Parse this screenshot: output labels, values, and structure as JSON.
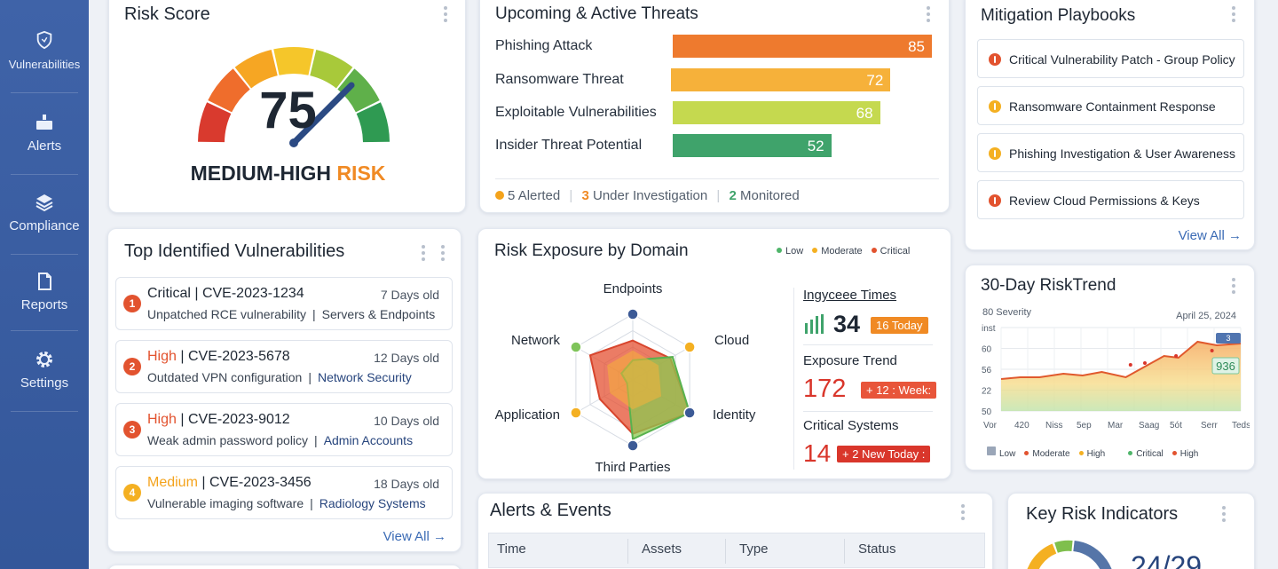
{
  "sidebar": {
    "items": [
      {
        "label": "Vulnerabilities",
        "icon": "shield-icon"
      },
      {
        "label": "Alerts",
        "icon": "alert-icon"
      },
      {
        "label": "Compliance",
        "icon": "layers-icon"
      },
      {
        "label": "Reports",
        "icon": "document-icon"
      },
      {
        "label": "Settings",
        "icon": "gear-icon"
      }
    ]
  },
  "risk_score": {
    "title": "Risk Score",
    "value": "75",
    "value_fraction": 0.75,
    "level_prefix": "MEDIUM-HIGH",
    "level_suffix": "RISK",
    "level_color": "#f08a24"
  },
  "threats": {
    "title": "Upcoming & Active Threats",
    "items": [
      {
        "label": "Phishing Attack",
        "value": "85",
        "color": "#ee7a2e"
      },
      {
        "label": "Ransomware Threat",
        "value": "72",
        "color": "#f6b13a"
      },
      {
        "label": "Exploitable Vulnerabilities",
        "value": "68",
        "color": "#c5d94f"
      },
      {
        "label": "Insider Threat Potential",
        "value": "52",
        "color": "#3fa36b"
      }
    ],
    "summary": {
      "alerted_count": "5",
      "alerted_label": "Alerted",
      "investigation_count": "3",
      "investigation_label": "Under Investigation",
      "monitored_count": "2",
      "monitored_label": "Monitored"
    }
  },
  "playbooks": {
    "title": "Mitigation Playbooks",
    "items": [
      {
        "label": "Critical Vulnerability Patch - Group Policy",
        "color": "#e2532f"
      },
      {
        "label": "Ransomware Containment Response",
        "color": "#f4b022"
      },
      {
        "label": "Phishing Investigation & User Awareness",
        "color": "#f4b022"
      },
      {
        "label": "Review Cloud Permissions & Keys",
        "color": "#e2532f"
      }
    ],
    "view_all": "View All"
  },
  "vulnerabilities": {
    "title": "Top Identified Vulnerabilities",
    "items": [
      {
        "num": "1",
        "severity": "Critical",
        "cve": "| CVE-2023-1234",
        "age_num": "7",
        "age_unit": "Days old",
        "desc": "Unpatched RCE vulnerability",
        "sep": "|",
        "area": "Servers & Endpoints",
        "sev_color": "#1e2733",
        "badge_color": "#e2532f",
        "area_color": "#3a4452"
      },
      {
        "num": "2",
        "severity": "High",
        "cve": "| CVE-2023-5678",
        "age_num": "12",
        "age_unit": "Days old",
        "desc": "Outdated VPN configuration",
        "sep": "|",
        "area": "Network Security",
        "sev_color": "#e2532f",
        "badge_color": "#e2532f",
        "area_color": "#27457d"
      },
      {
        "num": "3",
        "severity": "High",
        "cve": "| CVE-2023-9012",
        "age_num": "10",
        "age_unit": "Days old",
        "desc": "Weak admin password policy",
        "sep": "|",
        "area": "Admin Accounts",
        "sev_color": "#e2532f",
        "badge_color": "#e2532f",
        "area_color": "#27457d"
      },
      {
        "num": "4",
        "severity": "Medium",
        "cve": "| CVE-2023-3456",
        "age_num": "18",
        "age_unit": "Days old",
        "desc": "Vulnerable imaging software",
        "sep": "|",
        "area": "Radiology Systems",
        "sev_color": "#f4a31c",
        "badge_color": "#f4b022",
        "area_color": "#27457d"
      }
    ],
    "view_all": "View All"
  },
  "exposure": {
    "title": "Risk Exposure by Domain",
    "legend": [
      {
        "label": "Low",
        "color": "#4fb56a"
      },
      {
        "label": "Moderate",
        "color": "#f4b022"
      },
      {
        "label": "Critical",
        "color": "#e2532f"
      }
    ],
    "axes": [
      "Endpoints",
      "Cloud",
      "Identity",
      "Third Parties",
      "Application",
      "Network"
    ],
    "stats": {
      "times_label": "Ingyceee Times",
      "times_value": "34",
      "times_badge": "16 Today",
      "trend_label": "Exposure Trend",
      "trend_value": "172",
      "trend_badge": "+ 12 : Week:",
      "critical_label": "Critical Systems",
      "critical_value": "14",
      "critical_badge": "+ 2 New Today :"
    }
  },
  "trend": {
    "title": "30-Day RiskTrend",
    "ylabel": "80 Severity",
    "date": "April 25, 2024",
    "y_ticks": [
      "inst",
      "60",
      "56",
      "22",
      "50"
    ],
    "x_ticks": [
      "Vor",
      "420",
      "Niss",
      "5ep",
      "Mar",
      "Saag",
      "5ót",
      "Serr",
      "Teds"
    ],
    "tag_top": "3",
    "tag_value": "936",
    "legend": [
      {
        "label": "Low",
        "color": "#9aa6b8"
      },
      {
        "label": "Moderate",
        "color": "#e2532f"
      },
      {
        "label": "High",
        "color": "#f4b022"
      },
      {
        "label": "Critical",
        "color": "#4fb56a"
      },
      {
        "label": "High",
        "color": "#e2532f"
      }
    ]
  },
  "alerts": {
    "title": "Alerts & Events",
    "columns": [
      "Time",
      "Assets",
      "Type",
      "Status"
    ]
  },
  "kri": {
    "title": "Key Risk Indicators",
    "value": "24/29"
  }
}
